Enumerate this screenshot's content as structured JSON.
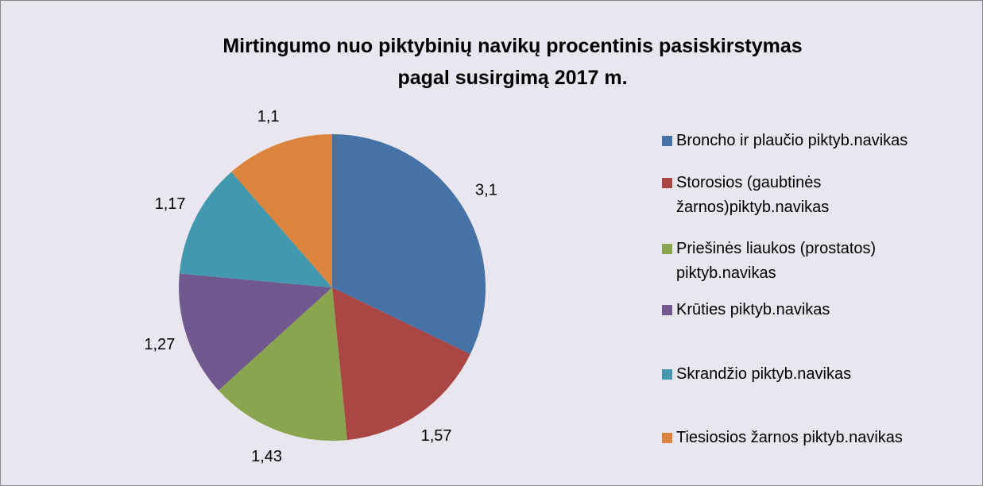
{
  "chart_data": {
    "type": "pie",
    "title": "Mirtingumo nuo piktybinių navikų procentinis pasiskirstymas pagal susirgimą 2017 m.",
    "categories": [
      "Broncho ir plaučio piktyb.navikas",
      "Storosios (gaubtinės žarnos)piktyb.navikas",
      "Priešinės liaukos (prostatos) piktyb.navikas",
      "Krūties piktyb.navikas",
      "Skrandžio piktyb.navikas",
      "Tiesiosios žarnos piktyb.navikas"
    ],
    "values": [
      3.1,
      1.57,
      1.43,
      1.27,
      1.17,
      1.1
    ],
    "value_labels": [
      "3,1",
      "1,57",
      "1,43",
      "1,27",
      "1,17",
      "1,1"
    ],
    "colors": [
      "#4572a7",
      "#aa4643",
      "#89a54e",
      "#71588f",
      "#4198af",
      "#db843d"
    ],
    "legend": "right"
  }
}
